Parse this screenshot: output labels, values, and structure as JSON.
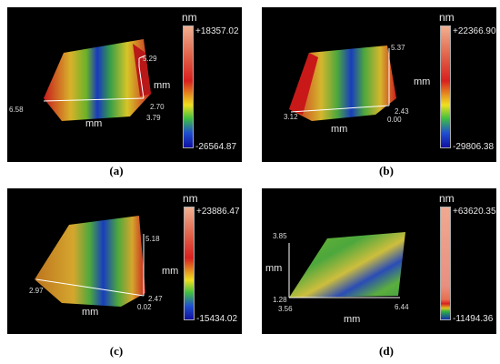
{
  "panels": [
    {
      "caption": "(a)",
      "unit_label": "nm",
      "max_value": "+18357.02",
      "min_value": "-26564.87",
      "axis_unit": "mm",
      "ticks": [
        "5.29",
        "6.58",
        "2.70",
        "3.79"
      ]
    },
    {
      "caption": "(b)",
      "unit_label": "nm",
      "max_value": "+22366.90",
      "min_value": "-29806.38",
      "axis_unit": "mm",
      "ticks": [
        "5.37",
        "3.12",
        "2.43",
        "0.00"
      ]
    },
    {
      "caption": "(c)",
      "unit_label": "nm",
      "max_value": "+23886.47",
      "min_value": "-15434.02",
      "axis_unit": "mm",
      "ticks": [
        "5.18",
        "2.97",
        "2.47",
        "0.02"
      ]
    },
    {
      "caption": "(d)",
      "unit_label": "nm",
      "max_value": "+63620.35",
      "min_value": "-11494.36",
      "axis_unit": "mm",
      "ticks": [
        "3.85",
        "1.28",
        "3.56",
        "6.44"
      ]
    }
  ]
}
